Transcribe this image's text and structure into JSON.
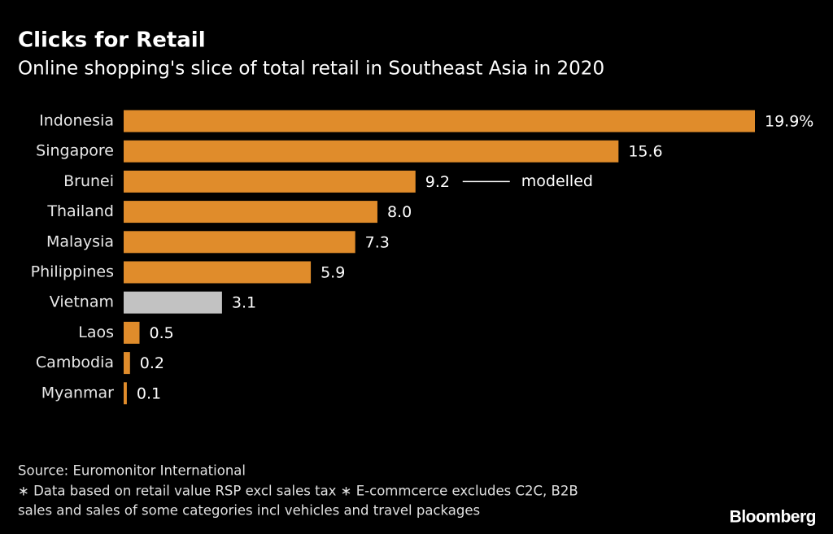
{
  "chart_data": {
    "type": "bar",
    "orientation": "horizontal",
    "title": "Clicks for Retail",
    "subtitle": "Online shopping's slice of total retail in Southeast Asia in 2020",
    "categories": [
      "Indonesia",
      "Singapore",
      "Brunei",
      "Thailand",
      "Malaysia",
      "Philippines",
      "Vietnam",
      "Laos",
      "Cambodia",
      "Myanmar"
    ],
    "values": [
      19.9,
      15.6,
      9.2,
      8.0,
      7.3,
      5.9,
      3.1,
      0.5,
      0.2,
      0.1
    ],
    "value_labels": [
      "19.9%",
      "15.6",
      "9.2",
      "8.0",
      "7.3",
      "5.9",
      "3.1",
      "0.5",
      "0.2",
      "0.1"
    ],
    "colors": [
      "#e08c2b",
      "#e08c2b",
      "#e08c2b",
      "#e08c2b",
      "#e08c2b",
      "#e08c2b",
      "#c2c2c2",
      "#e08c2b",
      "#e08c2b",
      "#e08c2b"
    ],
    "annotation": {
      "text": "modelled",
      "category": "Brunei"
    },
    "source": "Source: Euromonitor International",
    "notes": [
      "∗ Data based on retail value RSP excl sales tax ∗ E-commcerce excludes C2C, B2B",
      "sales and sales of some categories incl vehicles and travel packages"
    ],
    "brand": "Bloomberg"
  }
}
